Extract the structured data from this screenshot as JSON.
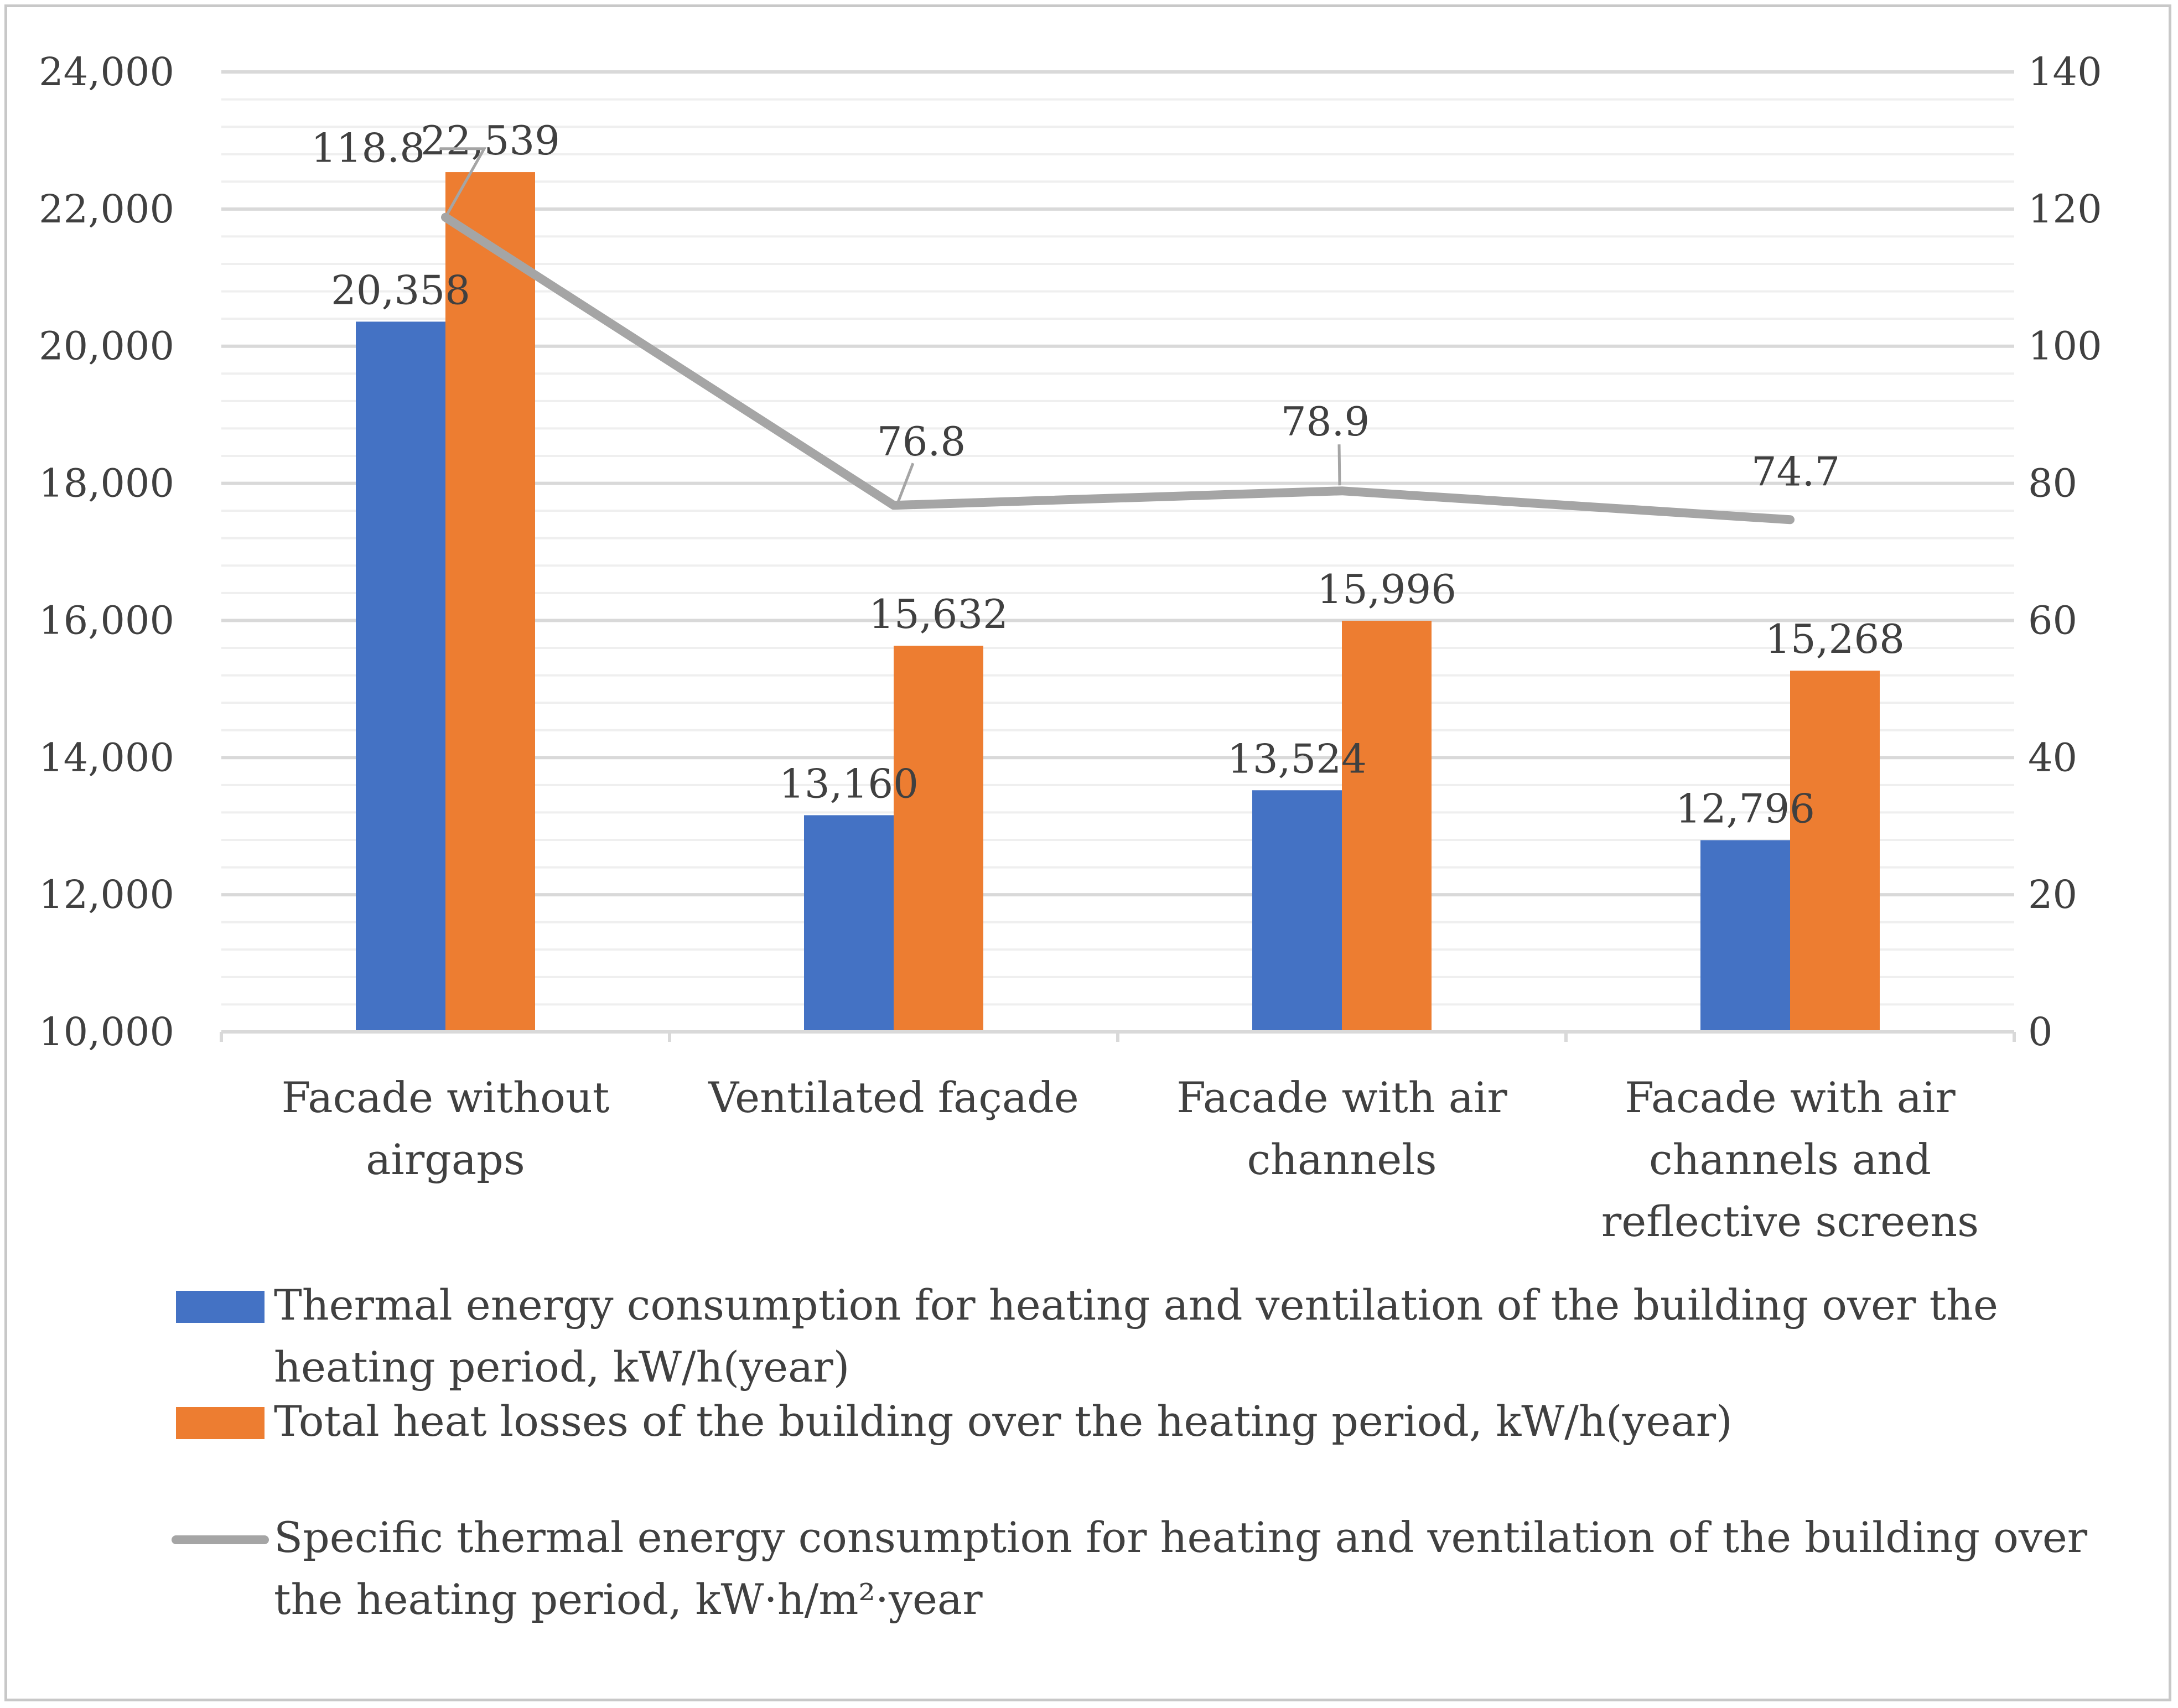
{
  "chart_data": {
    "type": "bar",
    "categories": [
      [
        "Facade without",
        "airgaps"
      ],
      [
        "Ventilated façade"
      ],
      [
        "Facade with air",
        "channels"
      ],
      [
        "Facade with air",
        "channels and",
        "reflective screens"
      ]
    ],
    "y_axis_left": {
      "range": [
        10000,
        24000
      ],
      "ticks": [
        "10,000",
        "12,000",
        "14,000",
        "16,000",
        "18,000",
        "20,000",
        "22,000",
        "24,000"
      ]
    },
    "y_axis_right": {
      "range": [
        0,
        140
      ],
      "ticks": [
        "0",
        "20",
        "40",
        "60",
        "80",
        "100",
        "120",
        "140"
      ]
    },
    "grid": true,
    "series": [
      {
        "name": "Thermal energy consumption for heating and ventilation of the building over the heating period, kW/h(year)",
        "legend_lines": [
          "Thermal energy consumption for heating and ventilation of the building over the",
          "heating period, kW/h(year)"
        ],
        "kind": "bar",
        "axis": "left",
        "color": "#4472c4",
        "values": [
          20358,
          13160,
          13524,
          12796
        ],
        "labels": [
          "20,358",
          "13,160",
          "13,524",
          "12,796"
        ]
      },
      {
        "name": "Total heat losses of the building over the heating period, kW/h(year)",
        "legend_lines": [
          "Total heat losses of the building over the heating period, kW/h(year)"
        ],
        "kind": "bar",
        "axis": "left",
        "color": "#ed7d31",
        "values": [
          22539,
          15632,
          15996,
          15268
        ],
        "labels": [
          "22,539",
          "15,632",
          "15,996",
          "15,268"
        ]
      },
      {
        "name": "Specific thermal energy consumption for heating and ventilation of the building over the heating period, kW·h/m²·year",
        "legend_lines": [
          "Specific thermal energy consumption for heating and ventilation of the building over",
          "the heating period, kW·h/m²·year"
        ],
        "kind": "line",
        "axis": "right",
        "color": "#a5a5a5",
        "values": [
          118.8,
          76.8,
          78.9,
          74.7
        ],
        "labels": [
          "118.8",
          "76.8",
          "78.9",
          "74.7"
        ]
      }
    ],
    "legend_position": "bottom"
  }
}
